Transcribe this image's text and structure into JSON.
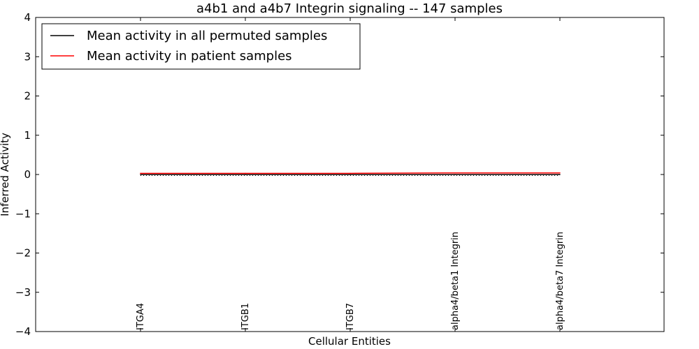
{
  "chart_data": {
    "type": "line",
    "title": "a4b1 and a4b7 Integrin signaling -- 147 samples",
    "xlabel": "Cellular Entities",
    "ylabel": "Inferred Activity",
    "ylim": [
      -4,
      4
    ],
    "yticks": [
      4,
      3,
      2,
      1,
      0,
      -1,
      -2,
      -3,
      -4
    ],
    "ytick_labels": [
      "4",
      "3",
      "2",
      "1",
      "0",
      "−1",
      "−2",
      "−3",
      "−4"
    ],
    "categories": [
      "ITGA4",
      "ITGB1",
      "ITGB7",
      "alpha4/beta1 Integrin",
      "alpha4/beta7 Integrin"
    ],
    "series": [
      {
        "name": "Mean activity in all permuted samples",
        "color": "#000000",
        "values": [
          0.0,
          0.0,
          0.0,
          0.0,
          0.0
        ]
      },
      {
        "name": "Mean activity in patient samples",
        "color": "#ff0000",
        "values": [
          0.03,
          0.03,
          0.03,
          0.04,
          0.04
        ]
      }
    ],
    "reference_line": {
      "y": 0,
      "style": "dotted",
      "color": "#000000"
    },
    "legend_location": "top-left",
    "grid": false
  }
}
